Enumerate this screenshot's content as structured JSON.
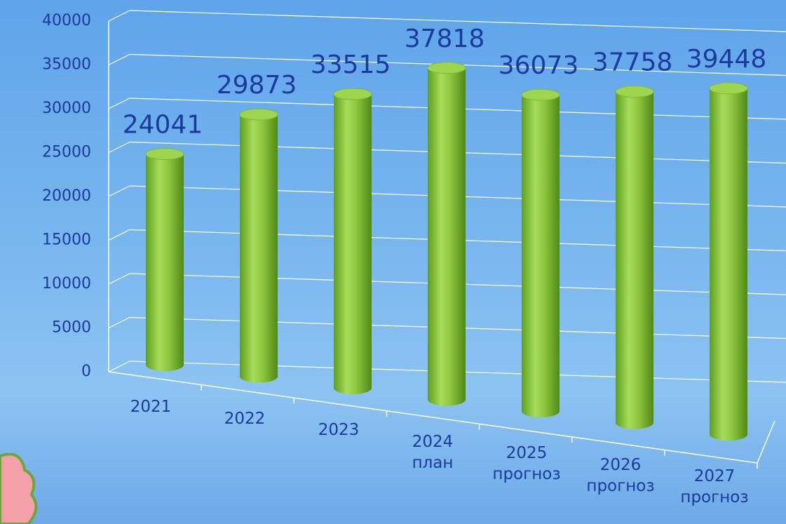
{
  "chart_data": {
    "type": "bar3d",
    "categories": [
      "2021",
      "2022",
      "2023",
      "2024\nплан",
      "2025\nпрогноз",
      "2026\nпрогноз",
      "2027\nпрогноз"
    ],
    "values": [
      24041,
      29873,
      33515,
      37818,
      36073,
      37758,
      39448
    ],
    "color": "#8dc63f",
    "ylim": [
      0,
      40000
    ],
    "yticks": [
      0,
      5000,
      10000,
      15000,
      20000,
      25000,
      30000,
      35000,
      40000
    ],
    "grid": true
  }
}
